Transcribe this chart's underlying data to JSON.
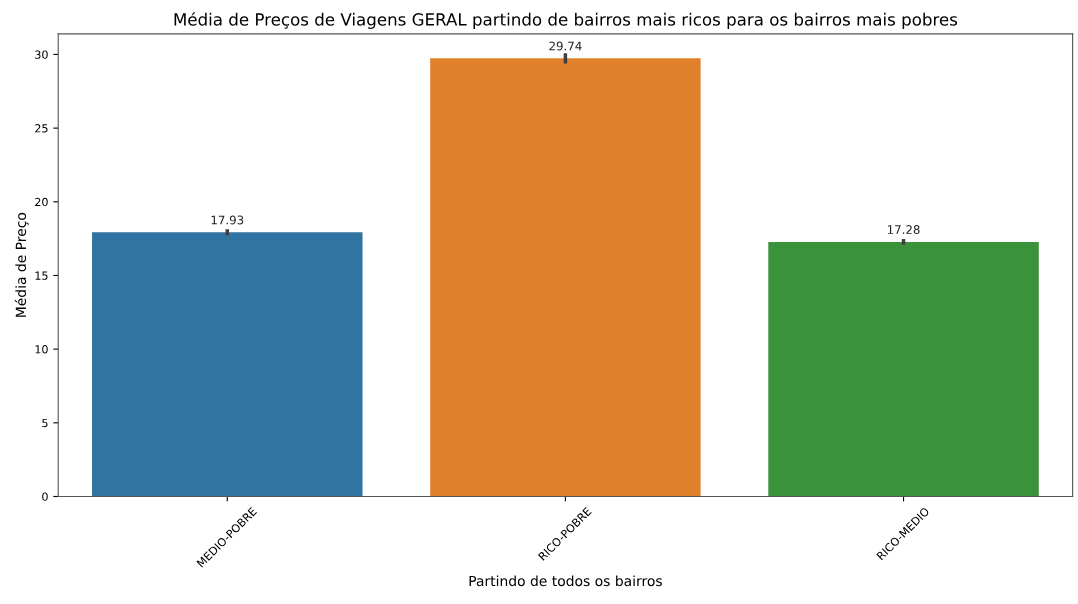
{
  "chart_data": {
    "type": "bar",
    "title": "Média de Preços de Viagens GERAL partindo de bairros mais ricos para os bairros mais pobres",
    "xlabel": "Partindo de todos os bairros",
    "ylabel": "Média de Preço",
    "categories": [
      "MEDIO-POBRE",
      "RICO-POBRE",
      "RICO-MEDIO"
    ],
    "values": [
      17.93,
      29.74,
      17.28
    ],
    "errors": [
      0.2,
      0.35,
      0.2
    ],
    "colors": [
      "#3274a1",
      "#e1812c",
      "#3a923a"
    ],
    "ylim": [
      0,
      31.4
    ],
    "yticks": [
      0,
      5,
      10,
      15,
      20,
      25,
      30
    ],
    "data_labels": true,
    "grid": false
  }
}
